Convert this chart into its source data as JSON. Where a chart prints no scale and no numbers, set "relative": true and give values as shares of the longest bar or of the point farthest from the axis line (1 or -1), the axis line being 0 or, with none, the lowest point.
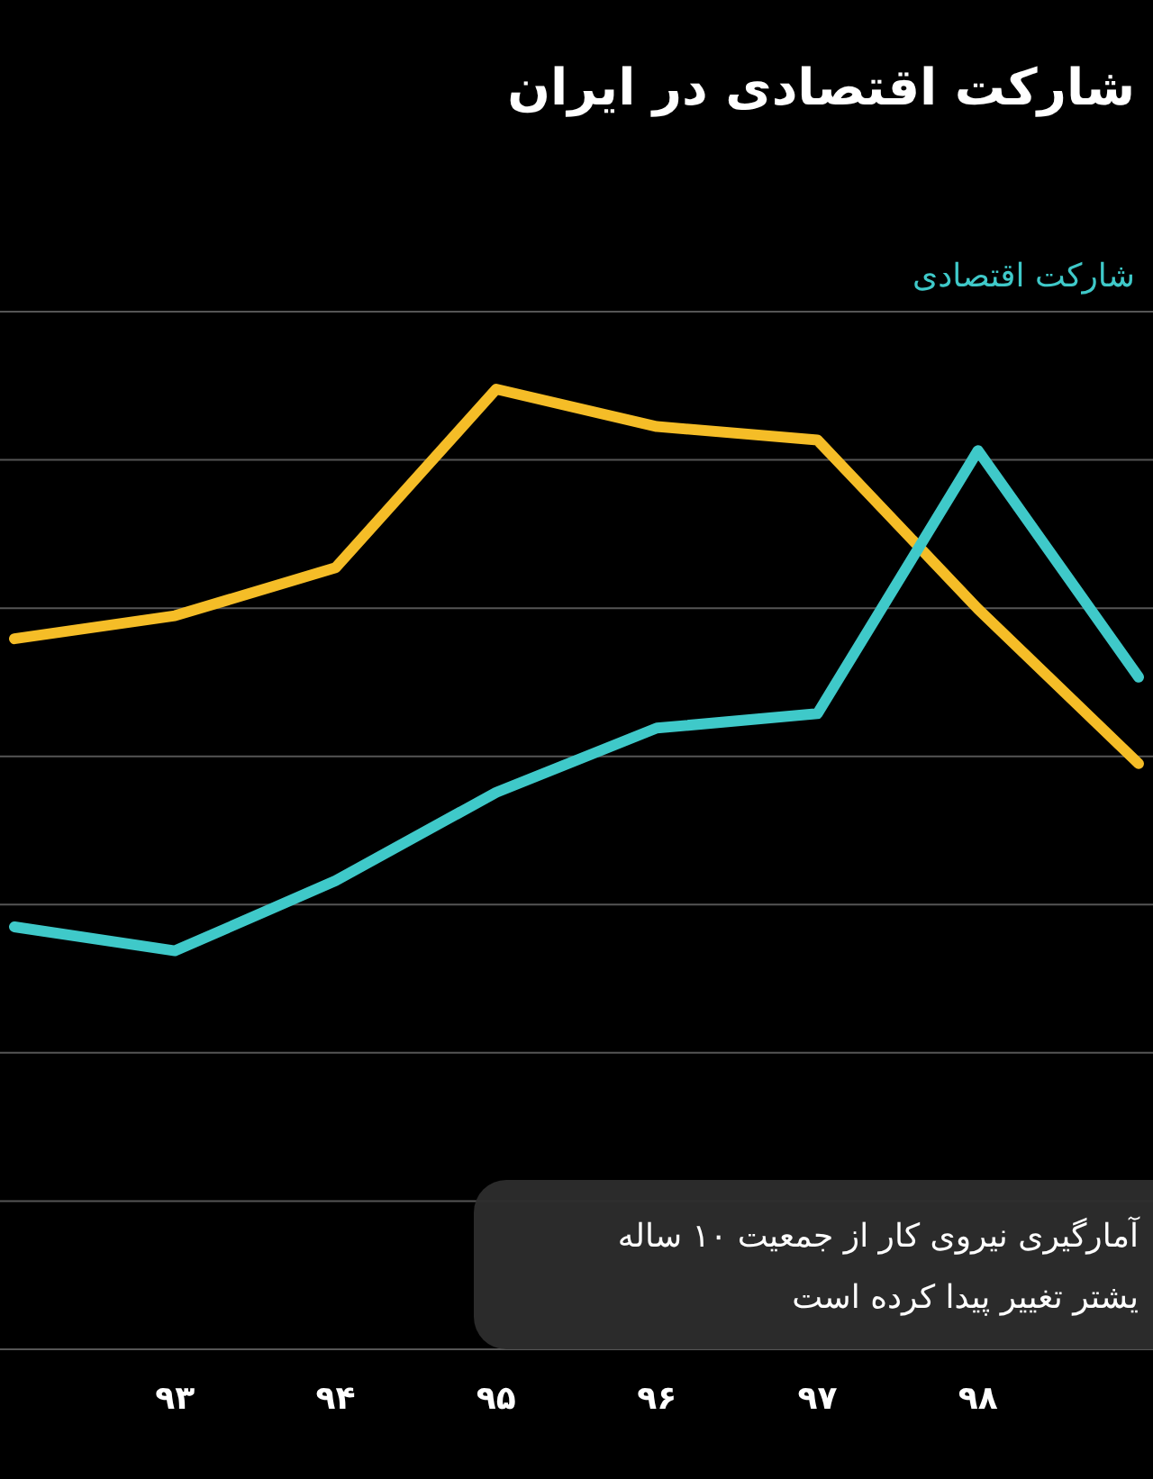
{
  "chart_data": {
    "type": "line",
    "title": "شارکت اقتصادی در ایران",
    "relative": true,
    "grid": true,
    "legend": "top right",
    "categories": [
      null,
      "۹۳",
      "۹۴",
      "۹۵",
      "۹۶",
      "۹۷",
      "۹۸",
      null
    ],
    "series": [
      {
        "color": "#f5bd27",
        "values": [
          0.74,
          0.764,
          0.814,
          1.0,
          0.961,
          0.947,
          0.771,
          0.61
        ]
      },
      {
        "name": "شارکت اقتصادی",
        "color": "#3fc9c9",
        "values": [
          0.44,
          0.415,
          0.488,
          0.58,
          0.647,
          0.662,
          0.936,
          0.7
        ]
      }
    ],
    "annotations": [
      "آمارگیری نیروی کار از جمعیت ۱۰ ساله\nیشتر تغییر پیدا کرده است"
    ],
    "line_style": "solid"
  }
}
